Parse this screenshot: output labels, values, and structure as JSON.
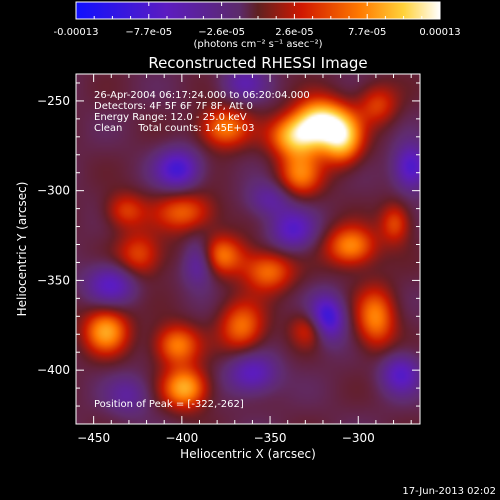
{
  "colorbar": {
    "tick_labels": [
      "-0.00013",
      "−7.7e-05",
      "−2.6e-05",
      "2.6e-05",
      "7.7e-05",
      "0.00013"
    ],
    "units_label": "(photons cm⁻² s⁻¹ asec⁻²)"
  },
  "annotations": [
    "26-Apr-2004 06:17:24.000 to 06:20:04.000",
    "Detectors: 4F 5F 6F 7F 8F, Att 0",
    "Energy Range: 12.0 - 25.0 keV",
    "Clean     Total counts: 1.45E+03"
  ],
  "peak_text": "Position of Peak = [-322,-262]",
  "footer_date": "17-Jun-2013 02:02",
  "chart_data": {
    "type": "heatmap",
    "title": "Reconstructed RHESSI Image",
    "xlabel": "Heliocentric X (arcsec)",
    "ylabel": "Heliocentric Y (arcsec)",
    "xlim": [
      -460,
      -265
    ],
    "ylim": [
      -430,
      -235
    ],
    "x_ticks": [
      -450,
      -400,
      -350,
      -300
    ],
    "y_ticks": [
      -250,
      -300,
      -350,
      -400
    ],
    "x_tick_labels": [
      "−450",
      "−400",
      "−350",
      "−300"
    ],
    "y_tick_labels": [
      "−250",
      "−300",
      "−350",
      "−400"
    ],
    "colormap": "red-temperature (blue=negative, white=positive)",
    "value_range": [
      -0.00013,
      0.00013
    ],
    "peak_position": [
      -322,
      -262
    ],
    "blobs": [
      {
        "x": -322,
        "y": -262,
        "amp": 1.0,
        "sx": 10,
        "sy": 9
      },
      {
        "x": -309,
        "y": -271,
        "amp": 0.8,
        "sx": 8,
        "sy": 10
      },
      {
        "x": -336,
        "y": -270,
        "amp": 0.75,
        "sx": 10,
        "sy": 8
      },
      {
        "x": -376,
        "y": -265,
        "amp": 0.6,
        "sx": 10,
        "sy": 8
      },
      {
        "x": -398,
        "y": -312,
        "amp": 0.5,
        "sx": 12,
        "sy": 8
      },
      {
        "x": -432,
        "y": -311,
        "amp": 0.4,
        "sx": 8,
        "sy": 7
      },
      {
        "x": -424,
        "y": -336,
        "amp": 0.45,
        "sx": 9,
        "sy": 9
      },
      {
        "x": -382,
        "y": -336,
        "amp": 0.7,
        "sx": 12,
        "sy": 8
      },
      {
        "x": -351,
        "y": -345,
        "amp": 0.55,
        "sx": 10,
        "sy": 8
      },
      {
        "x": -304,
        "y": -331,
        "amp": 0.65,
        "sx": 10,
        "sy": 8
      },
      {
        "x": -333,
        "y": -291,
        "amp": 0.55,
        "sx": 9,
        "sy": 9
      },
      {
        "x": -366,
        "y": -376,
        "amp": 0.55,
        "sx": 9,
        "sy": 10
      },
      {
        "x": -443,
        "y": -378,
        "amp": 0.7,
        "sx": 9,
        "sy": 9
      },
      {
        "x": -403,
        "y": -386,
        "amp": 0.6,
        "sx": 9,
        "sy": 8
      },
      {
        "x": -290,
        "y": -371,
        "amp": 0.6,
        "sx": 8,
        "sy": 12
      },
      {
        "x": -326,
        "y": -377,
        "amp": 0.45,
        "sx": 8,
        "sy": 7
      },
      {
        "x": -398,
        "y": -410,
        "amp": 0.75,
        "sx": 9,
        "sy": 8
      },
      {
        "x": -279,
        "y": -318,
        "amp": 0.45,
        "sx": 6,
        "sy": 8
      },
      {
        "x": -289,
        "y": -252,
        "amp": 0.4,
        "sx": 8,
        "sy": 8
      },
      {
        "x": -402,
        "y": -288,
        "amp": -0.6,
        "sx": 9,
        "sy": 8
      },
      {
        "x": -390,
        "y": -338,
        "amp": -0.8,
        "sx": 7,
        "sy": 9
      },
      {
        "x": -337,
        "y": -322,
        "amp": -0.5,
        "sx": 9,
        "sy": 8
      },
      {
        "x": -318,
        "y": -372,
        "amp": -0.8,
        "sx": 7,
        "sy": 9
      },
      {
        "x": -440,
        "y": -352,
        "amp": -0.5,
        "sx": 10,
        "sy": 8
      },
      {
        "x": -360,
        "y": -402,
        "amp": -0.5,
        "sx": 10,
        "sy": 8
      },
      {
        "x": -270,
        "y": -287,
        "amp": -0.6,
        "sx": 7,
        "sy": 9
      },
      {
        "x": -276,
        "y": -402,
        "amp": -0.5,
        "sx": 8,
        "sy": 8
      },
      {
        "x": -430,
        "y": -414,
        "amp": -0.3,
        "sx": 9,
        "sy": 8
      },
      {
        "x": -350,
        "y": -305,
        "amp": -0.35,
        "sx": 9,
        "sy": 7
      },
      {
        "x": -365,
        "y": -240,
        "amp": -0.35,
        "sx": 9,
        "sy": 7
      }
    ]
  },
  "colors": {
    "background": "#000000",
    "foreground": "#ffffff"
  }
}
